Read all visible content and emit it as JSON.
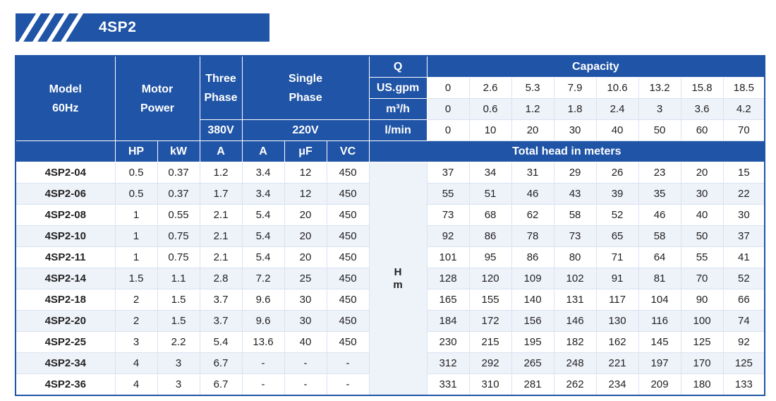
{
  "title": "4SP2",
  "header": {
    "model_l1": "Model",
    "model_l2": "60Hz",
    "motor_l1": "Motor",
    "motor_l2": "Power",
    "three_l1": "Three",
    "three_l2": "Phase",
    "single_l1": "Single",
    "single_l2": "Phase",
    "q": "Q",
    "capacity": "Capacity",
    "v380": "380V",
    "v220": "220V",
    "units": [
      "US.gpm",
      "m³/h",
      "l/min"
    ],
    "cap_usgpm": [
      "0",
      "2.6",
      "5.3",
      "7.9",
      "10.6",
      "13.2",
      "15.8",
      "18.5"
    ],
    "cap_m3h": [
      "0",
      "0.6",
      "1.2",
      "1.8",
      "2.4",
      "3",
      "3.6",
      "4.2"
    ],
    "cap_lmin": [
      "0",
      "10",
      "20",
      "30",
      "40",
      "50",
      "60",
      "70"
    ],
    "sub": [
      "HP",
      "kW",
      "A",
      "A",
      "μF",
      "VC"
    ],
    "total_head": "Total head in meters",
    "hm_l1": "H",
    "hm_l2": "m"
  },
  "rows": [
    {
      "model": "4SP2-04",
      "hp": "0.5",
      "kw": "0.37",
      "a3": "1.2",
      "a1": "3.4",
      "uf": "12",
      "vc": "450",
      "heads": [
        "37",
        "34",
        "31",
        "29",
        "26",
        "23",
        "20",
        "15"
      ]
    },
    {
      "model": "4SP2-06",
      "hp": "0.5",
      "kw": "0.37",
      "a3": "1.7",
      "a1": "3.4",
      "uf": "12",
      "vc": "450",
      "heads": [
        "55",
        "51",
        "46",
        "43",
        "39",
        "35",
        "30",
        "22"
      ]
    },
    {
      "model": "4SP2-08",
      "hp": "1",
      "kw": "0.55",
      "a3": "2.1",
      "a1": "5.4",
      "uf": "20",
      "vc": "450",
      "heads": [
        "73",
        "68",
        "62",
        "58",
        "52",
        "46",
        "40",
        "30"
      ]
    },
    {
      "model": "4SP2-10",
      "hp": "1",
      "kw": "0.75",
      "a3": "2.1",
      "a1": "5.4",
      "uf": "20",
      "vc": "450",
      "heads": [
        "92",
        "86",
        "78",
        "73",
        "65",
        "58",
        "50",
        "37"
      ]
    },
    {
      "model": "4SP2-11",
      "hp": "1",
      "kw": "0.75",
      "a3": "2.1",
      "a1": "5.4",
      "uf": "20",
      "vc": "450",
      "heads": [
        "101",
        "95",
        "86",
        "80",
        "71",
        "64",
        "55",
        "41"
      ]
    },
    {
      "model": "4SP2-14",
      "hp": "1.5",
      "kw": "1.1",
      "a3": "2.8",
      "a1": "7.2",
      "uf": "25",
      "vc": "450",
      "heads": [
        "128",
        "120",
        "109",
        "102",
        "91",
        "81",
        "70",
        "52"
      ]
    },
    {
      "model": "4SP2-18",
      "hp": "2",
      "kw": "1.5",
      "a3": "3.7",
      "a1": "9.6",
      "uf": "30",
      "vc": "450",
      "heads": [
        "165",
        "155",
        "140",
        "131",
        "117",
        "104",
        "90",
        "66"
      ]
    },
    {
      "model": "4SP2-20",
      "hp": "2",
      "kw": "1.5",
      "a3": "3.7",
      "a1": "9.6",
      "uf": "30",
      "vc": "450",
      "heads": [
        "184",
        "172",
        "156",
        "146",
        "130",
        "116",
        "100",
        "74"
      ]
    },
    {
      "model": "4SP2-25",
      "hp": "3",
      "kw": "2.2",
      "a3": "5.4",
      "a1": "13.6",
      "uf": "40",
      "vc": "450",
      "heads": [
        "230",
        "215",
        "195",
        "182",
        "162",
        "145",
        "125",
        "92"
      ]
    },
    {
      "model": "4SP2-34",
      "hp": "4",
      "kw": "3",
      "a3": "6.7",
      "a1": "-",
      "uf": "-",
      "vc": "-",
      "heads": [
        "312",
        "292",
        "265",
        "248",
        "221",
        "197",
        "170",
        "125"
      ]
    },
    {
      "model": "4SP2-36",
      "hp": "4",
      "kw": "3",
      "a3": "6.7",
      "a1": "-",
      "uf": "-",
      "vc": "-",
      "heads": [
        "331",
        "310",
        "281",
        "262",
        "234",
        "209",
        "180",
        "133"
      ]
    }
  ],
  "colors": {
    "header_blue": "#2054a6",
    "stripe_row": "#eef2f9",
    "text": "#222222"
  }
}
